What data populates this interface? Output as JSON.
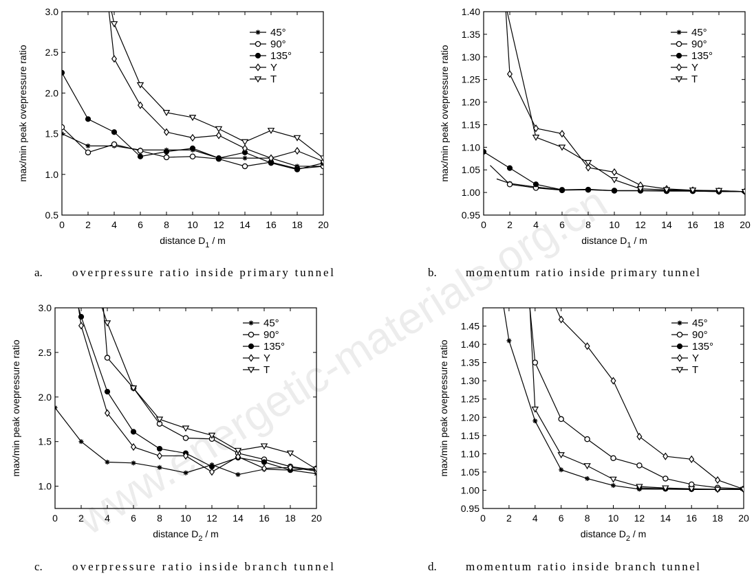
{
  "watermark": "www.energetic-materials.org.cn",
  "chart_data": [
    {
      "type": "line",
      "id": "a",
      "caption_letter": "a.",
      "caption": "overpressure ratio inside primary tunnel",
      "xlabel": "distance D1 / m",
      "xlabel_main": "distance D",
      "xlabel_sub": "1",
      "xlabel_tail": " / m",
      "ylabel": "max/min peak ovepressure ratio",
      "xlim": [
        0,
        20
      ],
      "ylim": [
        0.5,
        3.0
      ],
      "xticks": [
        0,
        2,
        4,
        6,
        8,
        10,
        12,
        14,
        16,
        18,
        20
      ],
      "yticks": [
        "0.5",
        "1.0",
        "1.5",
        "2.0",
        "2.5",
        "3.0"
      ],
      "legend_position": "top-right",
      "series": [
        {
          "name": "45°",
          "marker": "star",
          "x": [
            0,
            2,
            4,
            6,
            8,
            10,
            12,
            14,
            16,
            18,
            20
          ],
          "y": [
            1.5,
            1.35,
            1.35,
            1.3,
            1.3,
            1.3,
            1.2,
            1.2,
            1.2,
            1.1,
            1.1
          ]
        },
        {
          "name": "90°",
          "marker": "circle",
          "x": [
            0,
            2,
            4,
            6,
            8,
            10,
            12,
            14,
            16,
            18,
            20
          ],
          "y": [
            1.58,
            1.27,
            1.37,
            1.29,
            1.21,
            1.22,
            1.19,
            1.1,
            1.15,
            1.07,
            1.1
          ]
        },
        {
          "name": "135°",
          "marker": "filled",
          "x": [
            0,
            2,
            4,
            6,
            8,
            10,
            12,
            14,
            16,
            18,
            20
          ],
          "y": [
            2.25,
            1.68,
            1.52,
            1.22,
            1.28,
            1.32,
            1.2,
            1.27,
            1.14,
            1.06,
            1.14
          ]
        },
        {
          "name": "Y",
          "marker": "diamond",
          "x": [
            3.6,
            4,
            6,
            8,
            10,
            12,
            14,
            16,
            18,
            20
          ],
          "y": [
            3.0,
            2.42,
            1.85,
            1.52,
            1.45,
            1.48,
            1.32,
            1.2,
            1.29,
            1.16
          ]
        },
        {
          "name": "T",
          "marker": "tri-down",
          "x": [
            3.8,
            4,
            6,
            8,
            10,
            12,
            14,
            16,
            18,
            20
          ],
          "y": [
            3.0,
            2.85,
            2.1,
            1.76,
            1.7,
            1.56,
            1.4,
            1.54,
            1.45,
            1.2
          ]
        }
      ]
    },
    {
      "type": "line",
      "id": "b",
      "caption_letter": "b.",
      "caption": "momentum ratio inside primary tunnel",
      "xlabel": "distance D1 / m",
      "xlabel_main": "distance D",
      "xlabel_sub": "1",
      "xlabel_tail": " / m",
      "ylabel": "max/min peak ovepressure ratio",
      "xlim": [
        0,
        20
      ],
      "ylim": [
        0.95,
        1.4
      ],
      "xticks": [
        0,
        2,
        4,
        6,
        8,
        10,
        12,
        14,
        16,
        18,
        20
      ],
      "yticks": [
        "0.95",
        "1.00",
        "1.05",
        "1.10",
        "1.15",
        "1.20",
        "1.25",
        "1.30",
        "1.35",
        "1.40"
      ],
      "legend_position": "top-right",
      "series": [
        {
          "name": "45°",
          "marker": "star",
          "x": [
            1,
            2,
            4,
            6,
            8,
            10,
            12,
            14,
            16,
            18,
            20
          ],
          "y": [
            1.03,
            1.02,
            1.012,
            1.006,
            1.007,
            1.004,
            1.004,
            1.004,
            1.003,
            1.002,
            1.002
          ]
        },
        {
          "name": "90°",
          "marker": "circle",
          "x": [
            0.5,
            2,
            4,
            6,
            8,
            10,
            12,
            14,
            16,
            18,
            20
          ],
          "y": [
            1.06,
            1.018,
            1.01,
            1.005,
            1.006,
            1.004,
            1.004,
            1.003,
            1.003,
            1.002,
            1.002
          ]
        },
        {
          "name": "135°",
          "marker": "filled",
          "x": [
            0,
            2,
            4,
            6,
            8,
            10,
            12,
            14,
            16,
            18,
            20
          ],
          "y": [
            1.09,
            1.054,
            1.018,
            1.006,
            1.006,
            1.004,
            1.004,
            1.004,
            1.004,
            1.004,
            1.002
          ]
        },
        {
          "name": "Y",
          "marker": "diamond",
          "x": [
            1.7,
            2,
            4,
            6,
            8,
            10,
            12,
            14,
            16,
            18,
            20
          ],
          "y": [
            1.4,
            1.262,
            1.142,
            1.13,
            1.055,
            1.045,
            1.016,
            1.008,
            1.005,
            1.003,
            1.002
          ]
        },
        {
          "name": "T",
          "marker": "tri-down",
          "x": [
            1.8,
            4,
            6,
            8,
            10,
            12,
            14,
            16,
            18,
            20
          ],
          "y": [
            1.4,
            1.122,
            1.1,
            1.066,
            1.028,
            1.008,
            1.006,
            1.005,
            1.004,
            1.002
          ]
        }
      ]
    },
    {
      "type": "line",
      "id": "c",
      "caption_letter": "c.",
      "caption": "overpressure ratio inside branch tunnel",
      "xlabel": "distance D2 / m",
      "xlabel_main": "distance D",
      "xlabel_sub": "2",
      "xlabel_tail": " / m",
      "ylabel": "max/min peak ovepressure ratio",
      "xlim": [
        0,
        20
      ],
      "ylim": [
        0.75,
        3.0
      ],
      "xticks": [
        0,
        2,
        4,
        6,
        8,
        10,
        12,
        14,
        16,
        18,
        20
      ],
      "yticks": [
        "1.0",
        "1.5",
        "2.0",
        "2.5",
        "3.0"
      ],
      "legend_position": "top-right",
      "series": [
        {
          "name": "45°",
          "marker": "star",
          "x": [
            0,
            2,
            4,
            6,
            8,
            10,
            12,
            14,
            16,
            18,
            20
          ],
          "y": [
            1.88,
            1.5,
            1.27,
            1.26,
            1.21,
            1.15,
            1.24,
            1.13,
            1.19,
            1.18,
            1.14
          ]
        },
        {
          "name": "90°",
          "marker": "circle",
          "x": [
            3.7,
            4,
            6,
            8,
            10,
            12,
            14,
            16,
            18,
            20
          ],
          "y": [
            3.0,
            2.44,
            2.1,
            1.7,
            1.54,
            1.53,
            1.37,
            1.3,
            1.22,
            1.18
          ]
        },
        {
          "name": "135°",
          "marker": "filled",
          "x": [
            1.8,
            2,
            4,
            6,
            8,
            10,
            12,
            14,
            16,
            18,
            20
          ],
          "y": [
            3.0,
            2.9,
            2.06,
            1.61,
            1.42,
            1.37,
            1.22,
            1.32,
            1.27,
            1.18,
            1.2
          ]
        },
        {
          "name": "Y",
          "marker": "diamond",
          "x": [
            1.8,
            2,
            4,
            6,
            8,
            10,
            12,
            14,
            16,
            18,
            20
          ],
          "y": [
            3.0,
            2.8,
            1.82,
            1.44,
            1.34,
            1.34,
            1.16,
            1.33,
            1.2,
            1.21,
            1.17
          ]
        },
        {
          "name": "T",
          "marker": "tri-down",
          "x": [
            3.6,
            4,
            6,
            8,
            10,
            12,
            14,
            16,
            18,
            20
          ],
          "y": [
            3.0,
            2.83,
            2.1,
            1.75,
            1.65,
            1.57,
            1.4,
            1.45,
            1.37,
            1.19
          ]
        }
      ]
    },
    {
      "type": "line",
      "id": "d",
      "caption_letter": "d.",
      "caption": "momentum ratio inside branch tunnel",
      "xlabel": "distance D2 / m",
      "xlabel_main": "distance D",
      "xlabel_sub": "2",
      "xlabel_tail": " / m",
      "ylabel": "max/min peak ovepressure ratio",
      "xlim": [
        0,
        20
      ],
      "ylim": [
        0.95,
        1.5
      ],
      "xticks": [
        0,
        2,
        4,
        6,
        8,
        10,
        12,
        14,
        16,
        18,
        20
      ],
      "yticks": [
        "0.95",
        "1.00",
        "1.05",
        "1.10",
        "1.15",
        "1.20",
        "1.25",
        "1.30",
        "1.35",
        "1.40",
        "1.45"
      ],
      "legend_position": "top-right",
      "series": [
        {
          "name": "45°",
          "marker": "star",
          "x": [
            1.6,
            2,
            4,
            6,
            8,
            10,
            12,
            14,
            16,
            18,
            20
          ],
          "y": [
            1.5,
            1.41,
            1.19,
            1.056,
            1.032,
            1.013,
            1.003,
            1.003,
            1.002,
            1.002,
            1.002
          ]
        },
        {
          "name": "90°",
          "marker": "circle",
          "x": [
            3.6,
            4,
            6,
            8,
            10,
            12,
            14,
            16,
            18,
            20
          ],
          "y": [
            1.5,
            1.35,
            1.195,
            1.14,
            1.088,
            1.068,
            1.032,
            1.016,
            1.007,
            1.004
          ]
        },
        {
          "name": "135°",
          "marker": "filled",
          "x": [
            12,
            14,
            16,
            18,
            20
          ],
          "y": [
            1.006,
            1.004,
            1.003,
            1.003,
            1.003
          ]
        },
        {
          "name": "Y",
          "marker": "diamond",
          "x": [
            5.6,
            6,
            8,
            10,
            12,
            14,
            16,
            18,
            20
          ],
          "y": [
            1.5,
            1.468,
            1.395,
            1.3,
            1.147,
            1.093,
            1.085,
            1.028,
            1.003
          ]
        },
        {
          "name": "T",
          "marker": "tri-down",
          "x": [
            3.6,
            4,
            6,
            8,
            10,
            12,
            14,
            16,
            18,
            20
          ],
          "y": [
            1.5,
            1.222,
            1.097,
            1.067,
            1.03,
            1.01,
            1.006,
            1.004,
            1.002,
            1.002
          ]
        }
      ]
    }
  ]
}
